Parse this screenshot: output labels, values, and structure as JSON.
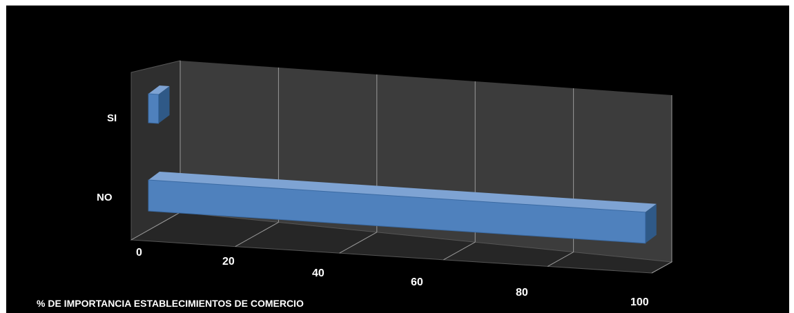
{
  "chart_data": {
    "type": "bar",
    "orientation": "horizontal",
    "style": "3d",
    "categories": [
      "SI",
      "NO"
    ],
    "values": [
      2,
      99
    ],
    "xlabel": "% DE IMPORTANCIA  ESTABLECIMIENTOS  DE COMERCIO",
    "ylabel": "",
    "xlim": [
      0,
      100
    ],
    "xticks": [
      "0",
      "20",
      "40",
      "60",
      "80",
      "100"
    ],
    "grid": true,
    "legend": "none",
    "colors": {
      "background": "#000000",
      "back_wall": "#3c3c3c",
      "floor": "#262626",
      "side_wall": "#2f2f2f",
      "bar_front": "#4f81bd",
      "bar_top": "#7ea3d3",
      "bar_side": "#2f5987",
      "text": "#ffffff",
      "grid": "#9a9a9a"
    }
  }
}
